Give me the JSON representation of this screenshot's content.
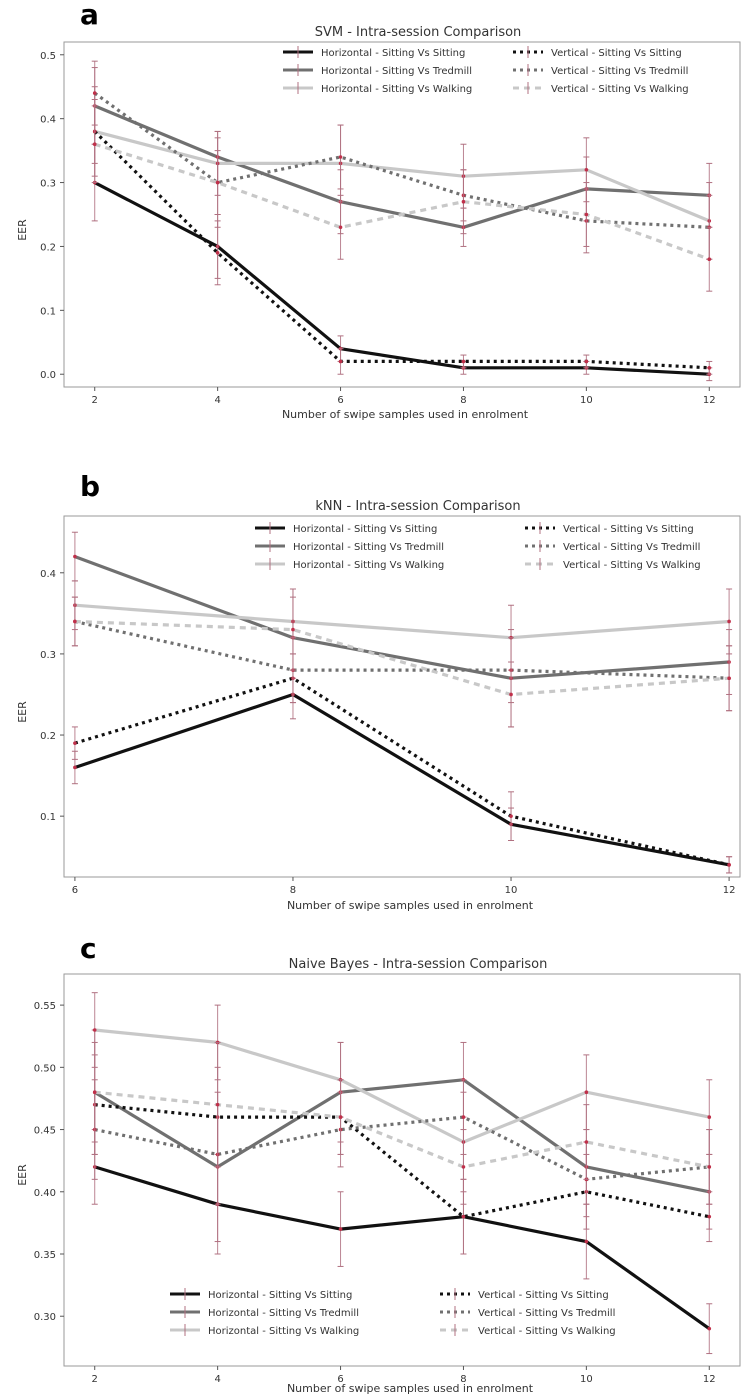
{
  "chart_data": [
    {
      "panel_label": "a",
      "type": "line",
      "title": "SVM - Intra-session Comparison",
      "xlabel": "Number of swipe samples used in enrolment",
      "ylabel": "EER",
      "x": [
        2,
        4,
        6,
        8,
        10,
        12
      ],
      "xlim": [
        1.5,
        12.5
      ],
      "ylim": [
        -0.02,
        0.52
      ],
      "xticks": [
        "2",
        "4",
        "6",
        "8",
        "10",
        "12"
      ],
      "yticks": [
        "0.0",
        "0.1",
        "0.2",
        "0.3",
        "0.4",
        "0.5"
      ],
      "legend_position": "top-right",
      "series": [
        {
          "name": "Horizontal - Sitting Vs Sitting",
          "style": "solid",
          "color": "#111111",
          "values": [
            0.3,
            0.2,
            0.04,
            0.01,
            0.01,
            0.0
          ],
          "errors": [
            0.06,
            0.05,
            0.02,
            0.01,
            0.01,
            0.01
          ]
        },
        {
          "name": "Horizontal - Sitting Vs Tredmill",
          "style": "solid",
          "color": "#707070",
          "values": [
            0.42,
            0.34,
            0.27,
            0.23,
            0.29,
            0.28
          ],
          "errors": [
            0.06,
            0.04,
            0.05,
            0.03,
            0.05,
            0.05
          ]
        },
        {
          "name": "Horizontal - Sitting Vs Walking",
          "style": "solid",
          "color": "#c8c8c8",
          "values": [
            0.38,
            0.33,
            0.33,
            0.31,
            0.32,
            0.24
          ],
          "errors": [
            0.07,
            0.05,
            0.06,
            0.05,
            0.05,
            0.06
          ]
        },
        {
          "name": "Vertical - Sitting Vs Sitting",
          "style": "dotted",
          "color": "#111111",
          "values": [
            0.38,
            0.19,
            0.02,
            0.02,
            0.02,
            0.01
          ],
          "errors": [
            0.05,
            0.05,
            0.02,
            0.01,
            0.01,
            0.01
          ]
        },
        {
          "name": "Vertical - Sitting Vs Tredmill",
          "style": "dotted",
          "color": "#707070",
          "values": [
            0.44,
            0.3,
            0.34,
            0.28,
            0.24,
            0.23
          ],
          "errors": [
            0.05,
            0.07,
            0.05,
            0.04,
            0.05,
            0.05
          ]
        },
        {
          "name": "Vertical - Sitting Vs Walking",
          "style": "dashed",
          "color": "#c8c8c8",
          "values": [
            0.36,
            0.3,
            0.23,
            0.27,
            0.25,
            0.18
          ],
          "errors": [
            0.06,
            0.05,
            0.05,
            0.05,
            0.05,
            0.05
          ]
        }
      ]
    },
    {
      "panel_label": "b",
      "type": "line",
      "title": "kNN - Intra-session Comparison",
      "xlabel": "Number of swipe samples used in enrolment",
      "ylabel": "EER",
      "x": [
        6,
        8,
        10,
        12
      ],
      "xlim": [
        5.9,
        12.1
      ],
      "ylim": [
        0.025,
        0.47
      ],
      "xticks": [
        "6",
        "8",
        "10",
        "12"
      ],
      "yticks": [
        "0.1",
        "0.2",
        "0.3",
        "0.4"
      ],
      "legend_position": "top-right",
      "series": [
        {
          "name": "Horizontal - Sitting Vs Sitting",
          "style": "solid",
          "color": "#111111",
          "values": [
            0.16,
            0.25,
            0.09,
            0.04
          ],
          "errors": [
            0.02,
            0.03,
            0.02,
            0.01
          ]
        },
        {
          "name": "Horizontal - Sitting Vs Tredmill",
          "style": "solid",
          "color": "#707070",
          "values": [
            0.42,
            0.32,
            0.27,
            0.29
          ],
          "errors": [
            0.03,
            0.05,
            0.06,
            0.04
          ]
        },
        {
          "name": "Horizontal - Sitting Vs Walking",
          "style": "solid",
          "color": "#c8c8c8",
          "values": [
            0.36,
            0.34,
            0.32,
            0.34
          ],
          "errors": [
            0.03,
            0.04,
            0.04,
            0.04
          ]
        },
        {
          "name": "Vertical - Sitting Vs Sitting",
          "style": "dotted",
          "color": "#111111",
          "values": [
            0.19,
            0.27,
            0.1,
            0.04
          ],
          "errors": [
            0.02,
            0.03,
            0.03,
            0.01
          ]
        },
        {
          "name": "Vertical - Sitting Vs Tredmill",
          "style": "dotted",
          "color": "#707070",
          "values": [
            0.34,
            0.28,
            0.28,
            0.27
          ],
          "errors": [
            0.03,
            0.04,
            0.04,
            0.04
          ]
        },
        {
          "name": "Vertical - Sitting Vs Walking",
          "style": "dashed",
          "color": "#c8c8c8",
          "values": [
            0.34,
            0.33,
            0.25,
            0.27
          ],
          "errors": [
            0.03,
            0.05,
            0.04,
            0.04
          ]
        }
      ]
    },
    {
      "panel_label": "c",
      "type": "line",
      "title": "Naive Bayes - Intra-session Comparison",
      "xlabel": "Number of swipe samples used in enrolment",
      "ylabel": "EER",
      "x": [
        2,
        4,
        6,
        8,
        10,
        12
      ],
      "xlim": [
        1.5,
        12.5
      ],
      "ylim": [
        0.26,
        0.575
      ],
      "xticks": [
        "2",
        "4",
        "6",
        "8",
        "10",
        "12"
      ],
      "yticks": [
        "0.30",
        "0.35",
        "0.40",
        "0.45",
        "0.50",
        "0.55"
      ],
      "legend_position": "bottom-left",
      "series": [
        {
          "name": "Horizontal - Sitting Vs Sitting",
          "style": "solid",
          "color": "#111111",
          "values": [
            0.42,
            0.39,
            0.37,
            0.38,
            0.36,
            0.29
          ],
          "errors": [
            0.03,
            0.04,
            0.03,
            0.03,
            0.03,
            0.02
          ]
        },
        {
          "name": "Horizontal - Sitting Vs Tredmill",
          "style": "solid",
          "color": "#707070",
          "values": [
            0.48,
            0.42,
            0.48,
            0.49,
            0.42,
            0.4
          ],
          "errors": [
            0.05,
            0.06,
            0.04,
            0.03,
            0.03,
            0.03
          ]
        },
        {
          "name": "Horizontal - Sitting Vs Walking",
          "style": "solid",
          "color": "#c8c8c8",
          "values": [
            0.53,
            0.52,
            0.49,
            0.44,
            0.48,
            0.46
          ],
          "errors": [
            0.03,
            0.03,
            0.03,
            0.04,
            0.03,
            0.03
          ]
        },
        {
          "name": "Vertical - Sitting Vs Sitting",
          "style": "dotted",
          "color": "#111111",
          "values": [
            0.47,
            0.46,
            0.46,
            0.38,
            0.4,
            0.38
          ],
          "errors": [
            0.04,
            0.04,
            0.03,
            0.03,
            0.03,
            0.02
          ]
        },
        {
          "name": "Vertical - Sitting Vs Tredmill",
          "style": "dotted",
          "color": "#707070",
          "values": [
            0.45,
            0.43,
            0.45,
            0.46,
            0.41,
            0.42
          ],
          "errors": [
            0.04,
            0.04,
            0.03,
            0.03,
            0.03,
            0.03
          ]
        },
        {
          "name": "Vertical - Sitting Vs Walking",
          "style": "dashed",
          "color": "#c8c8c8",
          "values": [
            0.48,
            0.47,
            0.46,
            0.42,
            0.44,
            0.42
          ],
          "errors": [
            0.04,
            0.05,
            0.03,
            0.03,
            0.03,
            0.03
          ]
        }
      ]
    }
  ]
}
